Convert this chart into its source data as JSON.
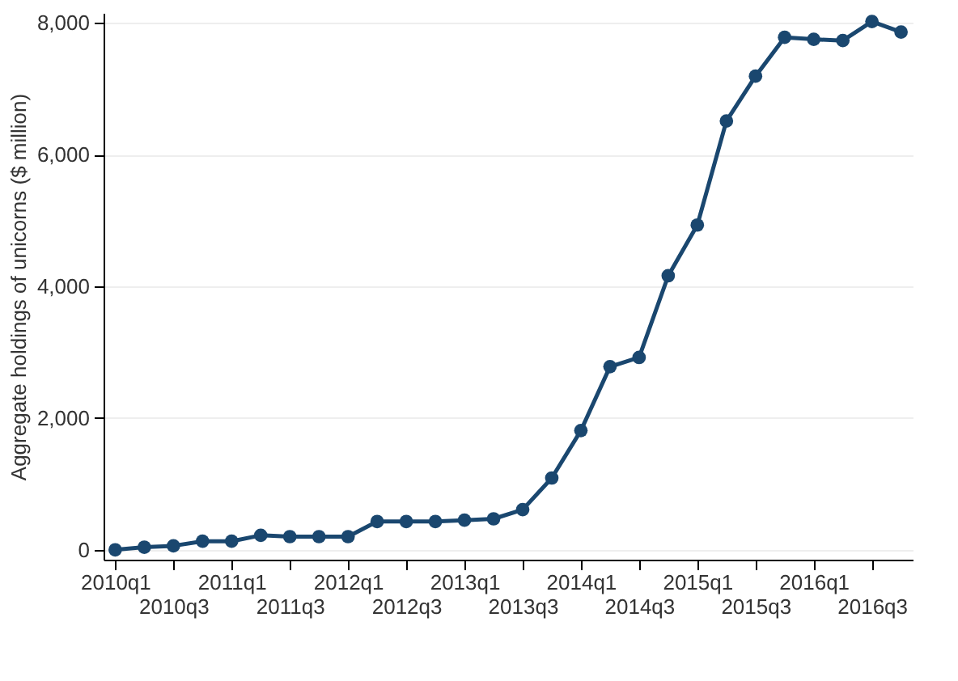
{
  "chart_data": {
    "type": "line",
    "ylabel": "Aggregate holdings of unicorns ($ million)",
    "categories": [
      "2010q1",
      null,
      "2010q3",
      null,
      "2011q1",
      null,
      "2011q3",
      null,
      "2012q1",
      null,
      "2012q3",
      null,
      "2013q1",
      null,
      "2013q3",
      null,
      "2014q1",
      null,
      "2014q3",
      null,
      "2015q1",
      null,
      "2015q3",
      null,
      "2016q1",
      null,
      "2016q3",
      null
    ],
    "series": [
      {
        "color": "#1a476f",
        "values": [
          0,
          40,
          60,
          130,
          130,
          220,
          200,
          200,
          200,
          430,
          430,
          430,
          450,
          470,
          610,
          1090,
          1810,
          2780,
          2920,
          4160,
          4930,
          6510,
          7190,
          7780,
          7750,
          7730,
          8020,
          7860
        ]
      }
    ],
    "ylim": [
      -150,
      8150
    ],
    "yticks": [
      {
        "value": 0,
        "label": "0"
      },
      {
        "value": 2000,
        "label": "2,000"
      },
      {
        "value": 4000,
        "label": "4,000"
      },
      {
        "value": 6000,
        "label": "6,000"
      },
      {
        "value": 8000,
        "label": "8,000"
      }
    ],
    "grid": "y",
    "marker": "circle",
    "line_style": "solid"
  }
}
